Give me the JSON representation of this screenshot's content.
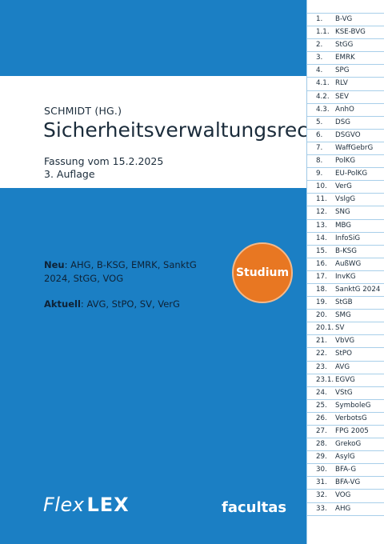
{
  "cover": {
    "editor": "SCHMIDT (HG.)",
    "title": "Sicherheitsverwaltungsrecht",
    "version": "Fassung vom 15.2.2025",
    "edition": "3. Auflage",
    "new_label": "Neu",
    "new_text": ": AHG, B-KSG, EMRK, SanktG 2024, StGG, VOG",
    "current_label": "Aktuell",
    "current_text": ": AVG, StPO, SV, VerG",
    "badge": "Studium",
    "logo_part1": "Flex",
    "logo_part2": "LEX",
    "publisher": "facultas"
  },
  "colors": {
    "blue": "#1b7fc4",
    "orange": "#e87722",
    "dark_text": "#1b2c3b"
  },
  "index": [
    {
      "num": "1.",
      "abbr": "B-VG"
    },
    {
      "num": "1.1.",
      "abbr": "KSE-BVG"
    },
    {
      "num": "2.",
      "abbr": "StGG"
    },
    {
      "num": "3.",
      "abbr": "EMRK"
    },
    {
      "num": "4.",
      "abbr": "SPG"
    },
    {
      "num": "4.1.",
      "abbr": "RLV"
    },
    {
      "num": "4.2.",
      "abbr": "SEV"
    },
    {
      "num": "4.3.",
      "abbr": "AnhO"
    },
    {
      "num": "5.",
      "abbr": "DSG"
    },
    {
      "num": "6.",
      "abbr": "DSGVO"
    },
    {
      "num": "7.",
      "abbr": "WaffGebrG"
    },
    {
      "num": "8.",
      "abbr": "PolKG"
    },
    {
      "num": "9.",
      "abbr": "EU-PolKG"
    },
    {
      "num": "10.",
      "abbr": "VerG"
    },
    {
      "num": "11.",
      "abbr": "VslgG"
    },
    {
      "num": "12.",
      "abbr": "SNG"
    },
    {
      "num": "13.",
      "abbr": "MBG"
    },
    {
      "num": "14.",
      "abbr": "InfoSiG"
    },
    {
      "num": "15.",
      "abbr": "B-KSG"
    },
    {
      "num": "16.",
      "abbr": "AußWG"
    },
    {
      "num": "17.",
      "abbr": "InvKG"
    },
    {
      "num": "18.",
      "abbr": "SanktG 2024"
    },
    {
      "num": "19.",
      "abbr": "StGB"
    },
    {
      "num": "20.",
      "abbr": "SMG"
    },
    {
      "num": "20.1.",
      "abbr": "SV"
    },
    {
      "num": "21.",
      "abbr": "VbVG"
    },
    {
      "num": "22.",
      "abbr": "StPO"
    },
    {
      "num": "23.",
      "abbr": "AVG"
    },
    {
      "num": "23.1.",
      "abbr": "EGVG"
    },
    {
      "num": "24.",
      "abbr": "VStG"
    },
    {
      "num": "25.",
      "abbr": "SymboleG"
    },
    {
      "num": "26.",
      "abbr": "VerbotsG"
    },
    {
      "num": "27.",
      "abbr": "FPG 2005"
    },
    {
      "num": "28.",
      "abbr": "GrekoG"
    },
    {
      "num": "29.",
      "abbr": "AsylG"
    },
    {
      "num": "30.",
      "abbr": "BFA-G"
    },
    {
      "num": "31.",
      "abbr": "BFA-VG"
    },
    {
      "num": "32.",
      "abbr": "VOG"
    },
    {
      "num": "33.",
      "abbr": "AHG"
    }
  ]
}
